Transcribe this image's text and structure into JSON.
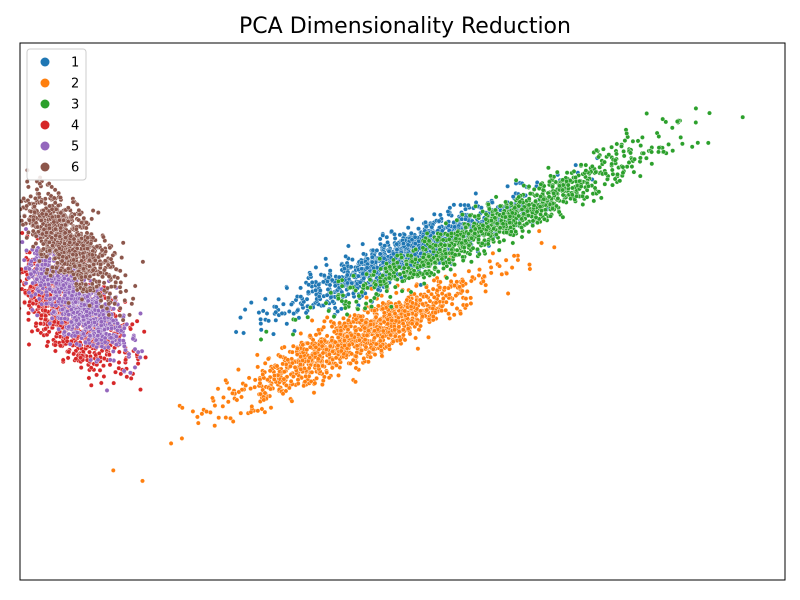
{
  "chart_data": {
    "type": "scatter",
    "title": "PCA Dimensionality Reduction",
    "xlabel": "",
    "ylabel": "",
    "show_ticks": false,
    "grid": false,
    "legend_position": "top-left",
    "xlim": [
      -1.0,
      4.2
    ],
    "ylim": [
      -2.8,
      2.2
    ],
    "series": [
      {
        "name": "1",
        "color": "#1f77b4",
        "clusters": [
          {
            "count": 1200,
            "cx": 1.65,
            "cy": 0.25,
            "sx": 0.48,
            "sy": 0.09,
            "angle_deg": 32
          }
        ]
      },
      {
        "name": "2",
        "color": "#ff7f0e",
        "clusters": [
          {
            "count": 1200,
            "cx": 1.3,
            "cy": -0.55,
            "sx": 0.5,
            "sy": 0.1,
            "angle_deg": 34
          }
        ]
      },
      {
        "name": "3",
        "color": "#2ca02c",
        "clusters": [
          {
            "count": 900,
            "cx": 2.15,
            "cy": 0.45,
            "sx": 0.55,
            "sy": 0.08,
            "angle_deg": 34
          },
          {
            "count": 120,
            "cx": 3.0,
            "cy": 1.05,
            "sx": 0.45,
            "sy": 0.1,
            "angle_deg": 34
          }
        ]
      },
      {
        "name": "4",
        "color": "#d62728",
        "clusters": [
          {
            "count": 1100,
            "cx": -0.65,
            "cy": -0.3,
            "sx": 0.28,
            "sy": 0.12,
            "angle_deg": -58
          }
        ]
      },
      {
        "name": "5",
        "color": "#9467bd",
        "clusters": [
          {
            "count": 900,
            "cx": -0.62,
            "cy": -0.2,
            "sx": 0.26,
            "sy": 0.1,
            "angle_deg": -58
          }
        ]
      },
      {
        "name": "6",
        "color": "#8c564b",
        "clusters": [
          {
            "count": 900,
            "cx": -0.68,
            "cy": 0.35,
            "sx": 0.28,
            "sy": 0.1,
            "angle_deg": -60
          }
        ]
      }
    ]
  }
}
